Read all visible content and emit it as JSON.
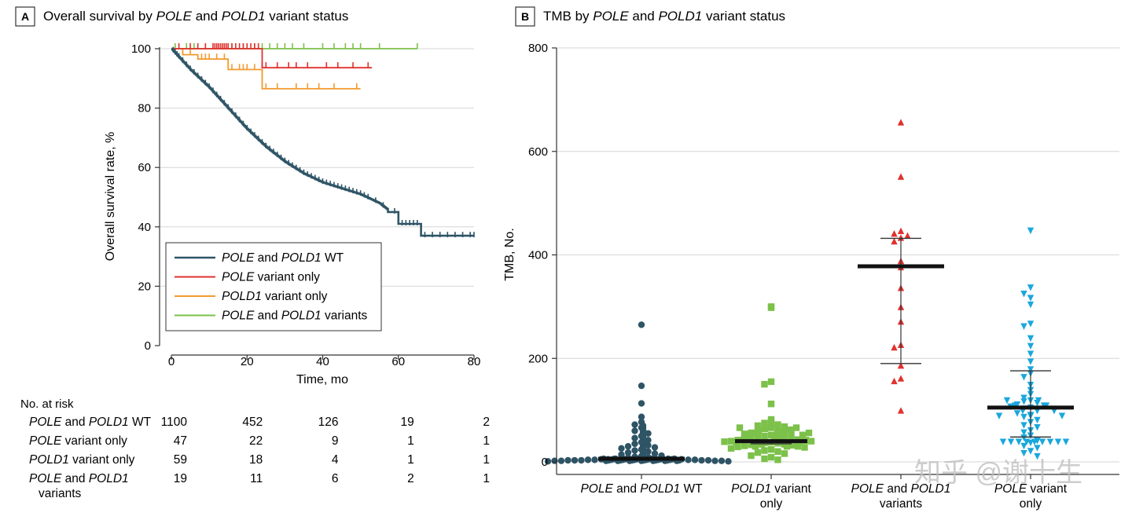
{
  "chart_data": [
    {
      "type": "line",
      "panel": "A",
      "title_parts": [
        "Overall survival by ",
        "POLE",
        " and ",
        "POLD1",
        " variant status"
      ],
      "xlabel": "Time, mo",
      "ylabel": "Overall survival rate, %",
      "xlim": [
        0,
        80
      ],
      "ylim": [
        0,
        100
      ],
      "xticks": [
        0,
        20,
        40,
        60,
        80
      ],
      "yticks": [
        0,
        20,
        40,
        60,
        80,
        100
      ],
      "grid": true,
      "legend_position": "bottom-left",
      "series": [
        {
          "name": "POLE and POLD1 WT",
          "legend_parts": [
            [
              "POLE",
              true
            ],
            [
              " and ",
              false
            ],
            [
              "POLD1",
              true
            ],
            [
              " WT",
              false
            ]
          ],
          "color": "#2e5466",
          "x": [
            0,
            5,
            10,
            15,
            20,
            25,
            30,
            35,
            40,
            45,
            50,
            55,
            58,
            60,
            66,
            70,
            80
          ],
          "y": [
            100,
            93,
            87,
            80,
            73,
            67,
            62,
            58,
            55,
            53,
            51,
            48,
            45,
            41,
            37,
            37,
            37
          ],
          "censor_x": [
            0.5,
            1,
            1.5,
            2,
            3,
            4,
            5,
            6,
            7,
            8,
            9,
            10,
            11,
            12,
            13,
            14,
            15,
            16,
            17,
            18,
            19,
            20,
            21,
            22,
            23,
            24,
            25,
            26,
            27,
            28,
            29,
            30,
            31,
            32,
            33,
            34,
            35,
            36,
            37,
            38,
            39,
            40,
            41,
            42,
            43,
            44,
            45,
            46,
            47,
            48,
            49,
            50,
            51,
            52,
            54,
            56,
            59,
            61,
            62,
            63,
            64,
            65,
            67,
            69,
            71,
            73,
            75,
            77,
            79,
            80
          ]
        },
        {
          "name": "POLE variant only",
          "legend_parts": [
            [
              "POLE",
              true
            ],
            [
              " variant only",
              false
            ]
          ],
          "color": "#e0312f",
          "x": [
            0,
            24,
            24,
            53
          ],
          "y": [
            100,
            100,
            93.6,
            93.6
          ],
          "censor_x": [
            2,
            5,
            7,
            9,
            11,
            11.5,
            12,
            12.5,
            13,
            13.5,
            14,
            14.5,
            15,
            16,
            17,
            18,
            19,
            20,
            21,
            22,
            23,
            24,
            25,
            28,
            31,
            33,
            36,
            41,
            44,
            48,
            52
          ]
        },
        {
          "name": "POLD1 variant only",
          "legend_parts": [
            [
              "POLD1",
              true
            ],
            [
              " variant only",
              false
            ]
          ],
          "color": "#f29a2e",
          "x": [
            0,
            3,
            3,
            7,
            7,
            15,
            15,
            24,
            24,
            50
          ],
          "y": [
            100,
            100,
            98,
            98,
            96.5,
            96.5,
            93,
            93,
            86.5,
            86.5
          ],
          "censor_x": [
            3,
            5,
            8,
            9,
            10,
            12,
            14,
            16,
            18,
            19,
            20,
            22,
            25,
            28,
            33,
            36,
            39,
            43,
            49
          ]
        },
        {
          "name": "POLE and POLD1 variants",
          "legend_parts": [
            [
              "POLE",
              true
            ],
            [
              " and ",
              false
            ],
            [
              "POLD1",
              true
            ],
            [
              " variants",
              false
            ]
          ],
          "color": "#7cc14a",
          "x": [
            0,
            65
          ],
          "y": [
            100,
            100
          ],
          "censor_x": [
            1,
            4,
            6,
            9,
            12,
            14,
            16,
            19,
            22,
            24,
            26,
            28,
            30,
            32,
            35,
            40,
            43,
            46,
            48,
            50,
            55,
            65
          ]
        }
      ],
      "risk_table": {
        "heading": "No. at risk",
        "times": [
          0,
          20,
          40,
          60,
          80
        ],
        "rows": [
          {
            "label_parts": [
              [
                "POLE",
                true
              ],
              [
                " and ",
                false
              ],
              [
                "POLD1",
                true
              ],
              [
                " WT",
                false
              ]
            ],
            "values": [
              "1100",
              "452",
              "126",
              "19",
              "2"
            ]
          },
          {
            "label_parts": [
              [
                "POLE",
                true
              ],
              [
                " variant only",
                false
              ]
            ],
            "values": [
              "47",
              "22",
              "9",
              "1",
              "1"
            ]
          },
          {
            "label_parts": [
              [
                "POLD1",
                true
              ],
              [
                " variant only",
                false
              ]
            ],
            "values": [
              "59",
              "18",
              "4",
              "1",
              "1"
            ]
          },
          {
            "label_parts": [
              [
                "POLE",
                true
              ],
              [
                " and ",
                false
              ],
              [
                "POLD1",
                true
              ]
            ],
            "label_line2": "variants",
            "values": [
              "19",
              "11",
              "6",
              "2",
              "1"
            ]
          }
        ]
      }
    },
    {
      "type": "scatter",
      "panel": "B",
      "title_parts": [
        "TMB by ",
        "POLE",
        " and ",
        "POLD1",
        " variant status"
      ],
      "ylabel": "TMB, No.",
      "ylim": [
        0,
        800
      ],
      "yticks": [
        0,
        200,
        400,
        600,
        800
      ],
      "grid": true,
      "groups": [
        {
          "label_line1_parts": [
            [
              "POLE",
              true
            ],
            [
              " and ",
              false
            ],
            [
              "POLD1",
              true
            ],
            [
              " WT",
              false
            ]
          ],
          "label_line2": "",
          "marker": "circle",
          "color": "#2e5466",
          "median": 6,
          "q1": 4,
          "q3": 9,
          "values": [
            265,
            147,
            113,
            87,
            77,
            72,
            66,
            60,
            55,
            50,
            46,
            42,
            38,
            35,
            32,
            30,
            28,
            26,
            24,
            22,
            20,
            18,
            16,
            14,
            12,
            11,
            10,
            9,
            8,
            7,
            7,
            6,
            6,
            6,
            5,
            5,
            5,
            5,
            4,
            4,
            4,
            4,
            3,
            3,
            3,
            3,
            3,
            2,
            2,
            2,
            2,
            1,
            1
          ]
        },
        {
          "label_line1_parts": [
            [
              "POLD1",
              true
            ],
            [
              " variant",
              false
            ]
          ],
          "label_line2": "only",
          "marker": "square",
          "color": "#7cc14a",
          "median": 40,
          "q1": 35,
          "q3": 42,
          "values": [
            300,
            298,
            155,
            150,
            112,
            82,
            78,
            75,
            72,
            70,
            68,
            66,
            64,
            62,
            60,
            58,
            56,
            55,
            54,
            52,
            50,
            49,
            48,
            47,
            46,
            45,
            44,
            43,
            42,
            41,
            40,
            40,
            39,
            38,
            37,
            36,
            35,
            34,
            33,
            32,
            31,
            30,
            29,
            28,
            26,
            24,
            22,
            20,
            18,
            16,
            12,
            9,
            6,
            4
          ]
        },
        {
          "label_line1_parts": [
            [
              "POLE",
              true
            ],
            [
              " and ",
              false
            ],
            [
              "POLD1",
              true
            ]
          ],
          "label_line2": "variants",
          "marker": "triangle-up",
          "color": "#e0312f",
          "median": 378,
          "q1": 190,
          "q3": 432,
          "values": [
            655,
            550,
            445,
            440,
            436,
            432,
            425,
            387,
            375,
            335,
            298,
            270,
            225,
            220,
            185,
            160,
            155,
            98
          ]
        },
        {
          "label_line1_parts": [
            [
              "POLE",
              true
            ],
            [
              " variant",
              false
            ]
          ],
          "label_line2": "only",
          "marker": "triangle-down",
          "color": "#1aa7dd",
          "median": 105,
          "q1": 48,
          "q3": 176,
          "values": [
            448,
            338,
            326,
            318,
            305,
            268,
            263,
            240,
            225,
            210,
            195,
            180,
            172,
            165,
            150,
            140,
            132,
            125,
            120,
            118,
            115,
            112,
            110,
            108,
            106,
            104,
            100,
            95,
            92,
            88,
            82,
            78,
            72,
            68,
            62,
            58,
            52,
            48,
            42,
            38,
            32,
            28,
            22,
            18,
            12
          ]
        }
      ]
    }
  ],
  "watermark": "知乎 @谢十生"
}
